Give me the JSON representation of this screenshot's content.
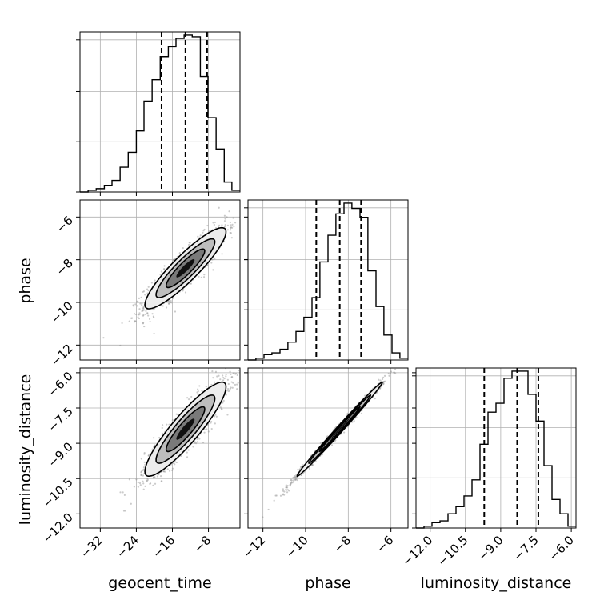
{
  "chart_data": {
    "type": "corner",
    "parameters": [
      "geocent_time",
      "phase",
      "luminosity_distance"
    ],
    "tick_labels": {
      "geocent_time": [
        "−32",
        "−24",
        "−16",
        "−8"
      ],
      "phase": [
        "−12",
        "−10",
        "−8",
        "−6"
      ],
      "phase_y": [
        "−6",
        "−8",
        "−10",
        "−12"
      ],
      "luminosity_distance": [
        "−12.0",
        "−10.5",
        "−9.0",
        "−7.5",
        "−6.0"
      ],
      "luminosity_distance_y": [
        "−6.0",
        "−7.5",
        "−9.0",
        "−10.5",
        "−12.0"
      ]
    },
    "ranges": {
      "geocent_time": [
        -36.5,
        -1.0
      ],
      "phase": [
        -12.7,
        -5.2
      ],
      "luminosity_distance": [
        -12.6,
        -5.8
      ]
    },
    "ticks": {
      "geocent_time": [
        -32,
        -24,
        -16,
        -8
      ],
      "phase": [
        -12,
        -10,
        -8,
        -6
      ],
      "luminosity_distance": [
        -12.0,
        -10.5,
        -9.0,
        -7.5,
        -6.0
      ]
    },
    "quantiles": {
      "geocent_time": [
        -18.4,
        -13.1,
        -8.3
      ],
      "phase": [
        -9.5,
        -8.4,
        -7.4
      ],
      "luminosity_distance": [
        -9.7,
        -8.3,
        -7.4
      ]
    },
    "histograms": {
      "geocent_time": {
        "edges": [
          -36.5,
          -34.7,
          -32.9,
          -31.1,
          -29.4,
          -27.6,
          -25.8,
          -24.0,
          -22.3,
          -20.5,
          -18.7,
          -16.9,
          -15.2,
          -13.4,
          -11.6,
          -9.8,
          -8.1,
          -6.3,
          -4.5,
          -2.8,
          -1.0
        ],
        "counts": [
          0,
          1,
          2,
          4,
          7,
          15,
          24,
          37,
          55,
          68,
          82,
          88,
          93,
          95,
          94,
          70,
          45,
          26,
          6,
          1
        ]
      },
      "phase": {
        "edges": [
          -12.7,
          -12.33,
          -11.95,
          -11.58,
          -11.2,
          -10.83,
          -10.45,
          -10.08,
          -9.7,
          -9.33,
          -8.95,
          -8.58,
          -8.2,
          -7.83,
          -7.45,
          -7.08,
          -6.7,
          -6.33,
          -5.95,
          -5.58,
          -5.2
        ],
        "counts": [
          0,
          1,
          3,
          4,
          6,
          10,
          16,
          24,
          35,
          55,
          70,
          82,
          88,
          85,
          80,
          50,
          30,
          14,
          4,
          1
        ]
      },
      "luminosity_distance": {
        "edges": [
          -12.6,
          -12.26,
          -11.92,
          -11.58,
          -11.24,
          -10.9,
          -10.56,
          -10.22,
          -9.88,
          -9.54,
          -9.2,
          -8.86,
          -8.52,
          -8.18,
          -7.84,
          -7.5,
          -7.16,
          -6.82,
          -6.48,
          -6.14,
          -5.8
        ],
        "counts": [
          0,
          1,
          3,
          4,
          8,
          12,
          18,
          27,
          47,
          65,
          70,
          84,
          88,
          88,
          75,
          60,
          35,
          16,
          8,
          1
        ]
      }
    },
    "correlations": {
      "phase_vs_geocent_time": {
        "mean": [
          -13.1,
          -8.4
        ],
        "sd": [
          4.5,
          0.95
        ],
        "rho": 0.9
      },
      "luminosity_distance_vs_geocent_time": {
        "mean": [
          -13.1,
          -8.4
        ],
        "sd": [
          4.5,
          1.0
        ],
        "rho": 0.9
      },
      "luminosity_distance_vs_phase": {
        "mean": [
          -8.4,
          -8.4
        ],
        "sd": [
          1.0,
          1.0
        ],
        "rho": 0.995
      }
    },
    "grid": true,
    "colors": {
      "line": "#000000",
      "scatter": "#8c8c8c",
      "grid": "#b0b0b0"
    }
  }
}
